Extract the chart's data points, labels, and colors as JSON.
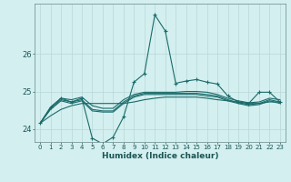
{
  "xlabel": "Humidex (Indice chaleur)",
  "background_color": "#d4efef",
  "grid_color": "#b8d8d8",
  "line_color": "#1a6b6b",
  "x": [
    0,
    1,
    2,
    3,
    4,
    5,
    6,
    7,
    8,
    9,
    10,
    11,
    12,
    13,
    14,
    15,
    16,
    17,
    18,
    19,
    20,
    21,
    22,
    23
  ],
  "ylim": [
    23.65,
    27.35
  ],
  "yticks": [
    24,
    25,
    26
  ],
  "line_main": [
    24.15,
    24.58,
    24.82,
    24.72,
    24.82,
    23.75,
    23.6,
    23.78,
    24.32,
    25.25,
    25.48,
    27.05,
    26.62,
    25.22,
    25.28,
    25.32,
    25.25,
    25.2,
    24.88,
    24.72,
    24.68,
    24.98,
    24.98,
    24.72
  ],
  "line_avg1": [
    24.15,
    24.58,
    24.82,
    24.78,
    24.85,
    24.62,
    24.55,
    24.55,
    24.78,
    24.92,
    24.98,
    24.98,
    24.98,
    24.98,
    25.0,
    25.0,
    24.98,
    24.92,
    24.82,
    24.75,
    24.7,
    24.72,
    24.82,
    24.78
  ],
  "line_avg2": [
    24.15,
    24.55,
    24.78,
    24.72,
    24.78,
    24.52,
    24.48,
    24.48,
    24.72,
    24.88,
    24.95,
    24.95,
    24.95,
    24.95,
    24.95,
    24.95,
    24.92,
    24.88,
    24.78,
    24.7,
    24.65,
    24.68,
    24.78,
    24.72
  ],
  "line_avg3": [
    24.15,
    24.52,
    24.75,
    24.68,
    24.75,
    24.48,
    24.45,
    24.45,
    24.68,
    24.85,
    24.92,
    24.92,
    24.92,
    24.92,
    24.92,
    24.92,
    24.88,
    24.85,
    24.75,
    24.68,
    24.62,
    24.65,
    24.75,
    24.68
  ],
  "line_slow": [
    24.15,
    24.35,
    24.52,
    24.62,
    24.68,
    24.68,
    24.68,
    24.68,
    24.68,
    24.72,
    24.78,
    24.82,
    24.85,
    24.85,
    24.85,
    24.85,
    24.82,
    24.78,
    24.75,
    24.72,
    24.68,
    24.68,
    24.72,
    24.72
  ]
}
